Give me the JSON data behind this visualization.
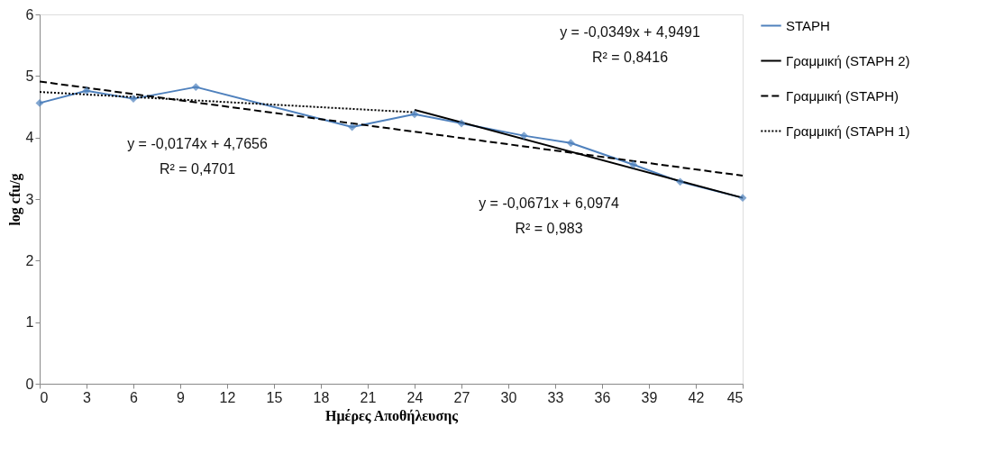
{
  "chart_data": {
    "type": "line",
    "xlabel": "Ημέρες Αποθήλευσης",
    "ylabel": "log cfu/g",
    "xlim": [
      0,
      45
    ],
    "xticks": [
      0,
      3,
      6,
      9,
      12,
      15,
      18,
      21,
      24,
      27,
      30,
      33,
      36,
      39,
      42,
      45
    ],
    "ylim": [
      0,
      6
    ],
    "yticks": [
      0,
      1,
      2,
      3,
      4,
      5,
      6
    ],
    "grid": false,
    "legend": "right",
    "series": [
      {
        "name": "STAPH",
        "color": "#4f81bd",
        "marker": "diamond",
        "line_style": "solid",
        "x": [
          0,
          3,
          6,
          10,
          20,
          24,
          27,
          31,
          34,
          38,
          41,
          45
        ],
        "values": [
          4.56,
          4.76,
          4.63,
          4.82,
          4.17,
          4.38,
          4.23,
          4.03,
          3.91,
          3.56,
          3.28,
          3.02
        ]
      },
      {
        "name": "Γραμμική (STAPH 2)",
        "color": "#000000",
        "marker": "none",
        "line_style": "solid",
        "x": [
          24,
          45
        ],
        "values": [
          4.45,
          3.02
        ]
      },
      {
        "name": "Γραμμική (STAPH)",
        "color": "#000000",
        "marker": "none",
        "line_style": "dashed",
        "x": [
          0,
          45
        ],
        "values": [
          4.91,
          3.38
        ]
      },
      {
        "name": "Γραμμική (STAPH 1)",
        "color": "#000000",
        "marker": "none",
        "line_style": "dotted",
        "x": [
          0,
          24
        ],
        "values": [
          4.74,
          4.41
        ]
      }
    ],
    "annotations": [
      "y = -0,0174x + 4,7656",
      "R² = 0,4701",
      "y = -0,0349x + 4,9491",
      "R² = 0,8416",
      "y = -0,0671x + 6,0974",
      "R² = 0,983"
    ]
  }
}
